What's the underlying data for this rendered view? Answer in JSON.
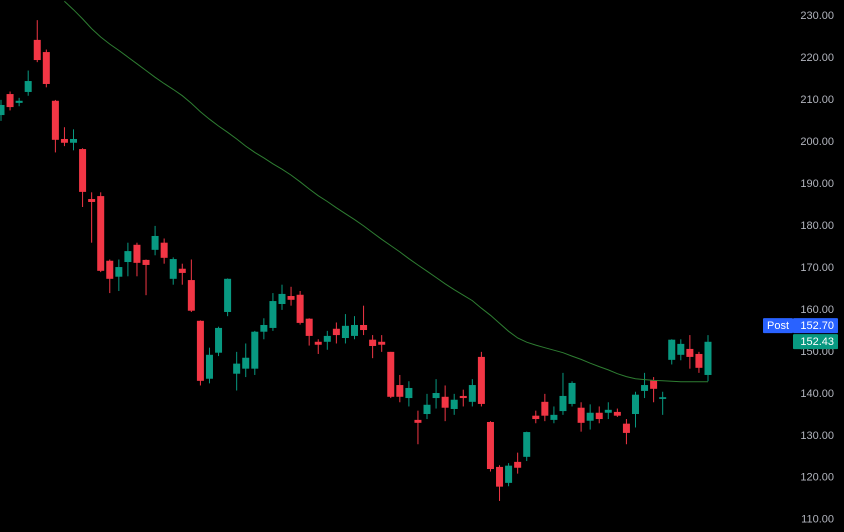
{
  "chart_data": {
    "type": "candlestick",
    "background": "#000000",
    "up_color": "#089981",
    "down_color": "#f23645",
    "ylim": [
      107.1,
      233.8
    ],
    "yticks": [
      {
        "value": 230,
        "label": "230.00"
      },
      {
        "value": 220,
        "label": "220.00"
      },
      {
        "value": 210,
        "label": "210.00"
      },
      {
        "value": 200,
        "label": "200.00"
      },
      {
        "value": 190,
        "label": "190.00"
      },
      {
        "value": 180,
        "label": "180.00"
      },
      {
        "value": 170,
        "label": "170.00"
      },
      {
        "value": 160,
        "label": "160.00"
      },
      {
        "value": 150,
        "label": "150.00"
      },
      {
        "value": 140,
        "label": "140.00"
      },
      {
        "value": 130,
        "label": "130.00"
      },
      {
        "value": 120,
        "label": "120.00"
      },
      {
        "value": 110,
        "label": "110.00"
      }
    ],
    "open": [
      206.4,
      211.4,
      209.3,
      211.9,
      224.3,
      221.4,
      209.8,
      200.7,
      199.8,
      198.3,
      186.4,
      187.1,
      171.7,
      167.9,
      171.4,
      175.5,
      171.9,
      174.3,
      176,
      167.4,
      169.8,
      167.1,
      157.4,
      143.6,
      149.8,
      159.5,
      144.8,
      146,
      146,
      154.8,
      155.7,
      161.4,
      163.3,
      163.6,
      157.9,
      152.4,
      152.4,
      155.5,
      153.3,
      153.8,
      156.4,
      152.9,
      152.4,
      150,
      142.1,
      139,
      133.8,
      135.2,
      139,
      139.3,
      136.4,
      139.5,
      138.1,
      148.8,
      133.3,
      122.6,
      118.8,
      123.8,
      125,
      134.8,
      138.1,
      133.8,
      135.9,
      137.6,
      136.7,
      133.6,
      135.5,
      135.5,
      135.7,
      132.9,
      135.2,
      140.7,
      143.3,
      138.8,
      148.1,
      149.3,
      150.7,
      149.5,
      144.5
    ],
    "high": [
      210,
      212,
      210.5,
      217,
      229,
      222,
      210,
      203.5,
      203,
      198.5,
      188,
      188,
      172,
      172,
      176,
      176,
      172,
      180,
      177,
      172.5,
      171,
      172,
      157.5,
      151,
      156,
      167.5,
      150,
      152,
      155,
      158,
      164,
      166,
      165.5,
      164.5,
      158,
      153,
      155,
      157,
      159,
      158.5,
      161,
      154,
      154,
      150,
      144.5,
      143,
      136,
      140,
      143.5,
      142,
      140,
      141,
      143.5,
      150,
      133.5,
      123,
      123.5,
      126,
      131,
      136,
      140,
      137,
      145,
      143,
      138,
      137.5,
      137,
      138,
      136.5,
      134,
      140.5,
      145,
      144,
      140.5,
      153,
      153,
      154,
      150,
      154
    ],
    "low": [
      205,
      207.5,
      208.5,
      211,
      219,
      213,
      197.5,
      199,
      198,
      184.5,
      176,
      169,
      164,
      164.5,
      168,
      168,
      163.5,
      173,
      171,
      166,
      166,
      159.5,
      142,
      142.5,
      149,
      158.5,
      140.8,
      144,
      144.5,
      153,
      155,
      160,
      161,
      156.5,
      151.5,
      149.5,
      150.5,
      152,
      152,
      153,
      154,
      148.5,
      150,
      139,
      138,
      137,
      128,
      134,
      136.5,
      133.5,
      135,
      137,
      137,
      137,
      121.5,
      114.5,
      118,
      121,
      124,
      133,
      133.5,
      133,
      135,
      137,
      131,
      131.5,
      133,
      134,
      134.5,
      128,
      132,
      139,
      138,
      135,
      147,
      148,
      146,
      145,
      143
    ],
    "close": [
      208.8,
      208.3,
      209.8,
      214.5,
      219.5,
      213.8,
      200.5,
      199.8,
      200.7,
      188.1,
      185.7,
      169.3,
      167.4,
      170.2,
      174,
      171.2,
      170.7,
      177.6,
      172.4,
      172.1,
      168.8,
      159.8,
      143.1,
      149.3,
      155.7,
      167.4,
      147.2,
      148.6,
      154.8,
      156.4,
      162.1,
      163.8,
      162.4,
      156.9,
      153.8,
      151.7,
      153.8,
      154,
      156.2,
      156.4,
      155.2,
      151.4,
      151.7,
      139.3,
      139.3,
      141.4,
      133.1,
      137.4,
      140.2,
      136.7,
      138.6,
      139,
      142.1,
      137.6,
      122.1,
      117.9,
      122.9,
      122.4,
      130.9,
      134,
      134.8,
      135,
      139.5,
      142.6,
      133.1,
      135.5,
      134,
      136.2,
      134.8,
      130.7,
      139.8,
      142.1,
      141.2,
      139.2,
      152.9,
      151.9,
      148.8,
      146.2,
      152.4
    ],
    "line": {
      "color": "#2e7d32",
      "values": [
        null,
        null,
        null,
        null,
        null,
        null,
        null,
        233.5,
        231.5,
        229.3,
        227,
        225,
        223.3,
        221.8,
        220.2,
        218.6,
        217,
        215.4,
        213.9,
        212.5,
        211,
        209.2,
        207.2,
        205.4,
        203.8,
        202.3,
        200.7,
        199,
        197.5,
        196.2,
        194.8,
        193.5,
        192.1,
        190.5,
        188.8,
        187.2,
        185.8,
        184.3,
        182.9,
        181.5,
        180,
        178.4,
        176.8,
        175.3,
        173.8,
        172.2,
        170.7,
        169.2,
        167.7,
        166.2,
        164.8,
        163.5,
        162.2,
        160.4,
        158.7,
        156.8,
        154.9,
        153.3,
        152.3,
        151.6,
        151,
        150.4,
        149.8,
        149,
        148.2,
        147.3,
        146.5,
        145.7,
        144.8,
        144.1,
        143.6,
        143.4,
        143.2,
        143.1,
        143,
        142.9,
        142.9,
        142.9,
        142.9
      ]
    },
    "price_tags": [
      {
        "name": "Post",
        "value": 152.7,
        "value_label": "152.70",
        "color": "#2962ff"
      },
      {
        "value": 152.43,
        "value_label": "152.43",
        "color": "#089981"
      }
    ]
  }
}
